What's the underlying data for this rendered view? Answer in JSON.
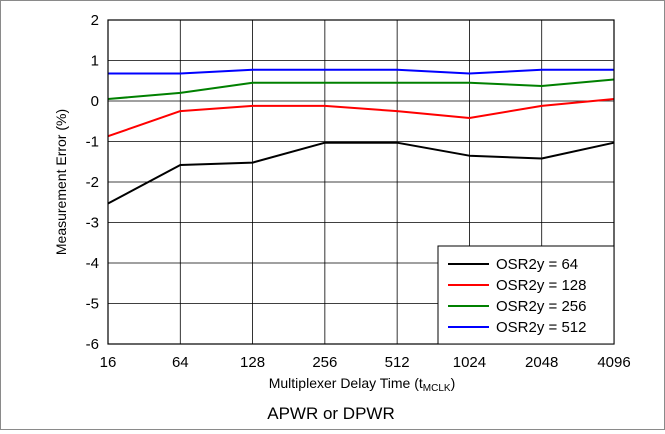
{
  "chart_data": {
    "type": "line",
    "xlabel_main": "Multiplexer Delay Time (t",
    "xlabel_sub": "MCLK",
    "xlabel_end": ")",
    "ylabel": "Measurement Error (%)",
    "caption": "APWR or DPWR",
    "categories": [
      "16",
      "64",
      "128",
      "256",
      "512",
      "1024",
      "2048",
      "4096"
    ],
    "y_ticks": [
      "2",
      "1",
      "0",
      "-1",
      "-2",
      "-3",
      "-4",
      "-5",
      "-6"
    ],
    "ylim": [
      -6,
      2
    ],
    "grid": true,
    "legend_position": "bottom-right",
    "series": [
      {
        "name": "OSR2y = 64",
        "color": "#000000",
        "values": [
          -2.53,
          -1.58,
          -1.52,
          -1.03,
          -1.03,
          -1.35,
          -1.42,
          -1.03
        ]
      },
      {
        "name": "OSR2y = 128",
        "color": "#ff0000",
        "values": [
          -0.87,
          -0.25,
          -0.12,
          -0.12,
          -0.25,
          -0.42,
          -0.12,
          0.05
        ]
      },
      {
        "name": "OSR2y = 256",
        "color": "#008000",
        "values": [
          0.05,
          0.2,
          0.45,
          0.45,
          0.45,
          0.45,
          0.37,
          0.53
        ]
      },
      {
        "name": "OSR2y = 512",
        "color": "#0000ff",
        "values": [
          0.68,
          0.68,
          0.77,
          0.77,
          0.77,
          0.68,
          0.77,
          0.77
        ]
      }
    ]
  }
}
